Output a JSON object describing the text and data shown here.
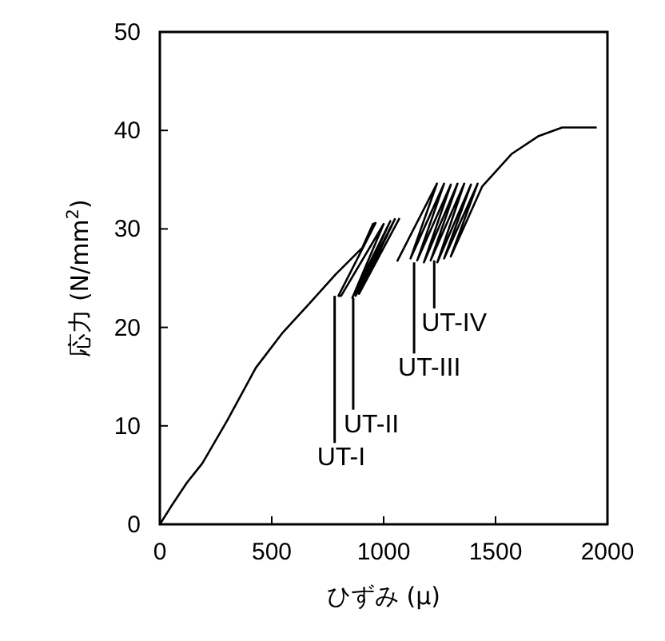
{
  "chart_data": {
    "type": "line",
    "xlabel": "ひずみ (μ)",
    "ylabel": "応力 (N/mm$^{2}$)",
    "series": [
      {
        "color": "#000000",
        "x": [
          0,
          50,
          120,
          190,
          300,
          429,
          550,
          667,
          786,
          905,
          952,
          964,
          798,
          810,
          1000,
          860,
          1030,
          875,
          1050,
          890,
          1071,
          1065,
          1060,
          1238,
          1120,
          1270,
          1150,
          1300,
          1180,
          1330,
          1210,
          1360,
          1240,
          1390,
          1270,
          1420,
          1300,
          1440,
          1571,
          1690,
          1798,
          1952
        ],
        "values": [
          0,
          1.8,
          4.2,
          6.2,
          10.5,
          15.9,
          19.5,
          22.4,
          25.4,
          28.1,
          30.5,
          30.6,
          23.2,
          23.2,
          30.5,
          23.0,
          30.8,
          23.2,
          31.0,
          23.4,
          31.1,
          null,
          26.7,
          34.6,
          27.0,
          34.6,
          26.8,
          34.5,
          26.6,
          34.6,
          26.8,
          34.6,
          26.6,
          34.5,
          27.0,
          34.6,
          27.2,
          34.3,
          37.6,
          39.4,
          40.3,
          40.3
        ]
      }
    ],
    "xlim": [
      0,
      2000
    ],
    "xticks": [
      0,
      500,
      1000,
      1500,
      2000
    ],
    "ylim": [
      0,
      50
    ],
    "yticks": [
      0,
      10,
      20,
      30,
      40,
      50
    ],
    "grid": false,
    "annotations": [
      {
        "text": "UT-I",
        "x": 781,
        "y": 23.2
      },
      {
        "text": "UT-II",
        "x": 864,
        "y": 23.0
      },
      {
        "text": "UT-III",
        "x": 1136,
        "y": 26.6
      },
      {
        "text": "UT-IV",
        "x": 1226,
        "y": 26.8
      }
    ]
  }
}
